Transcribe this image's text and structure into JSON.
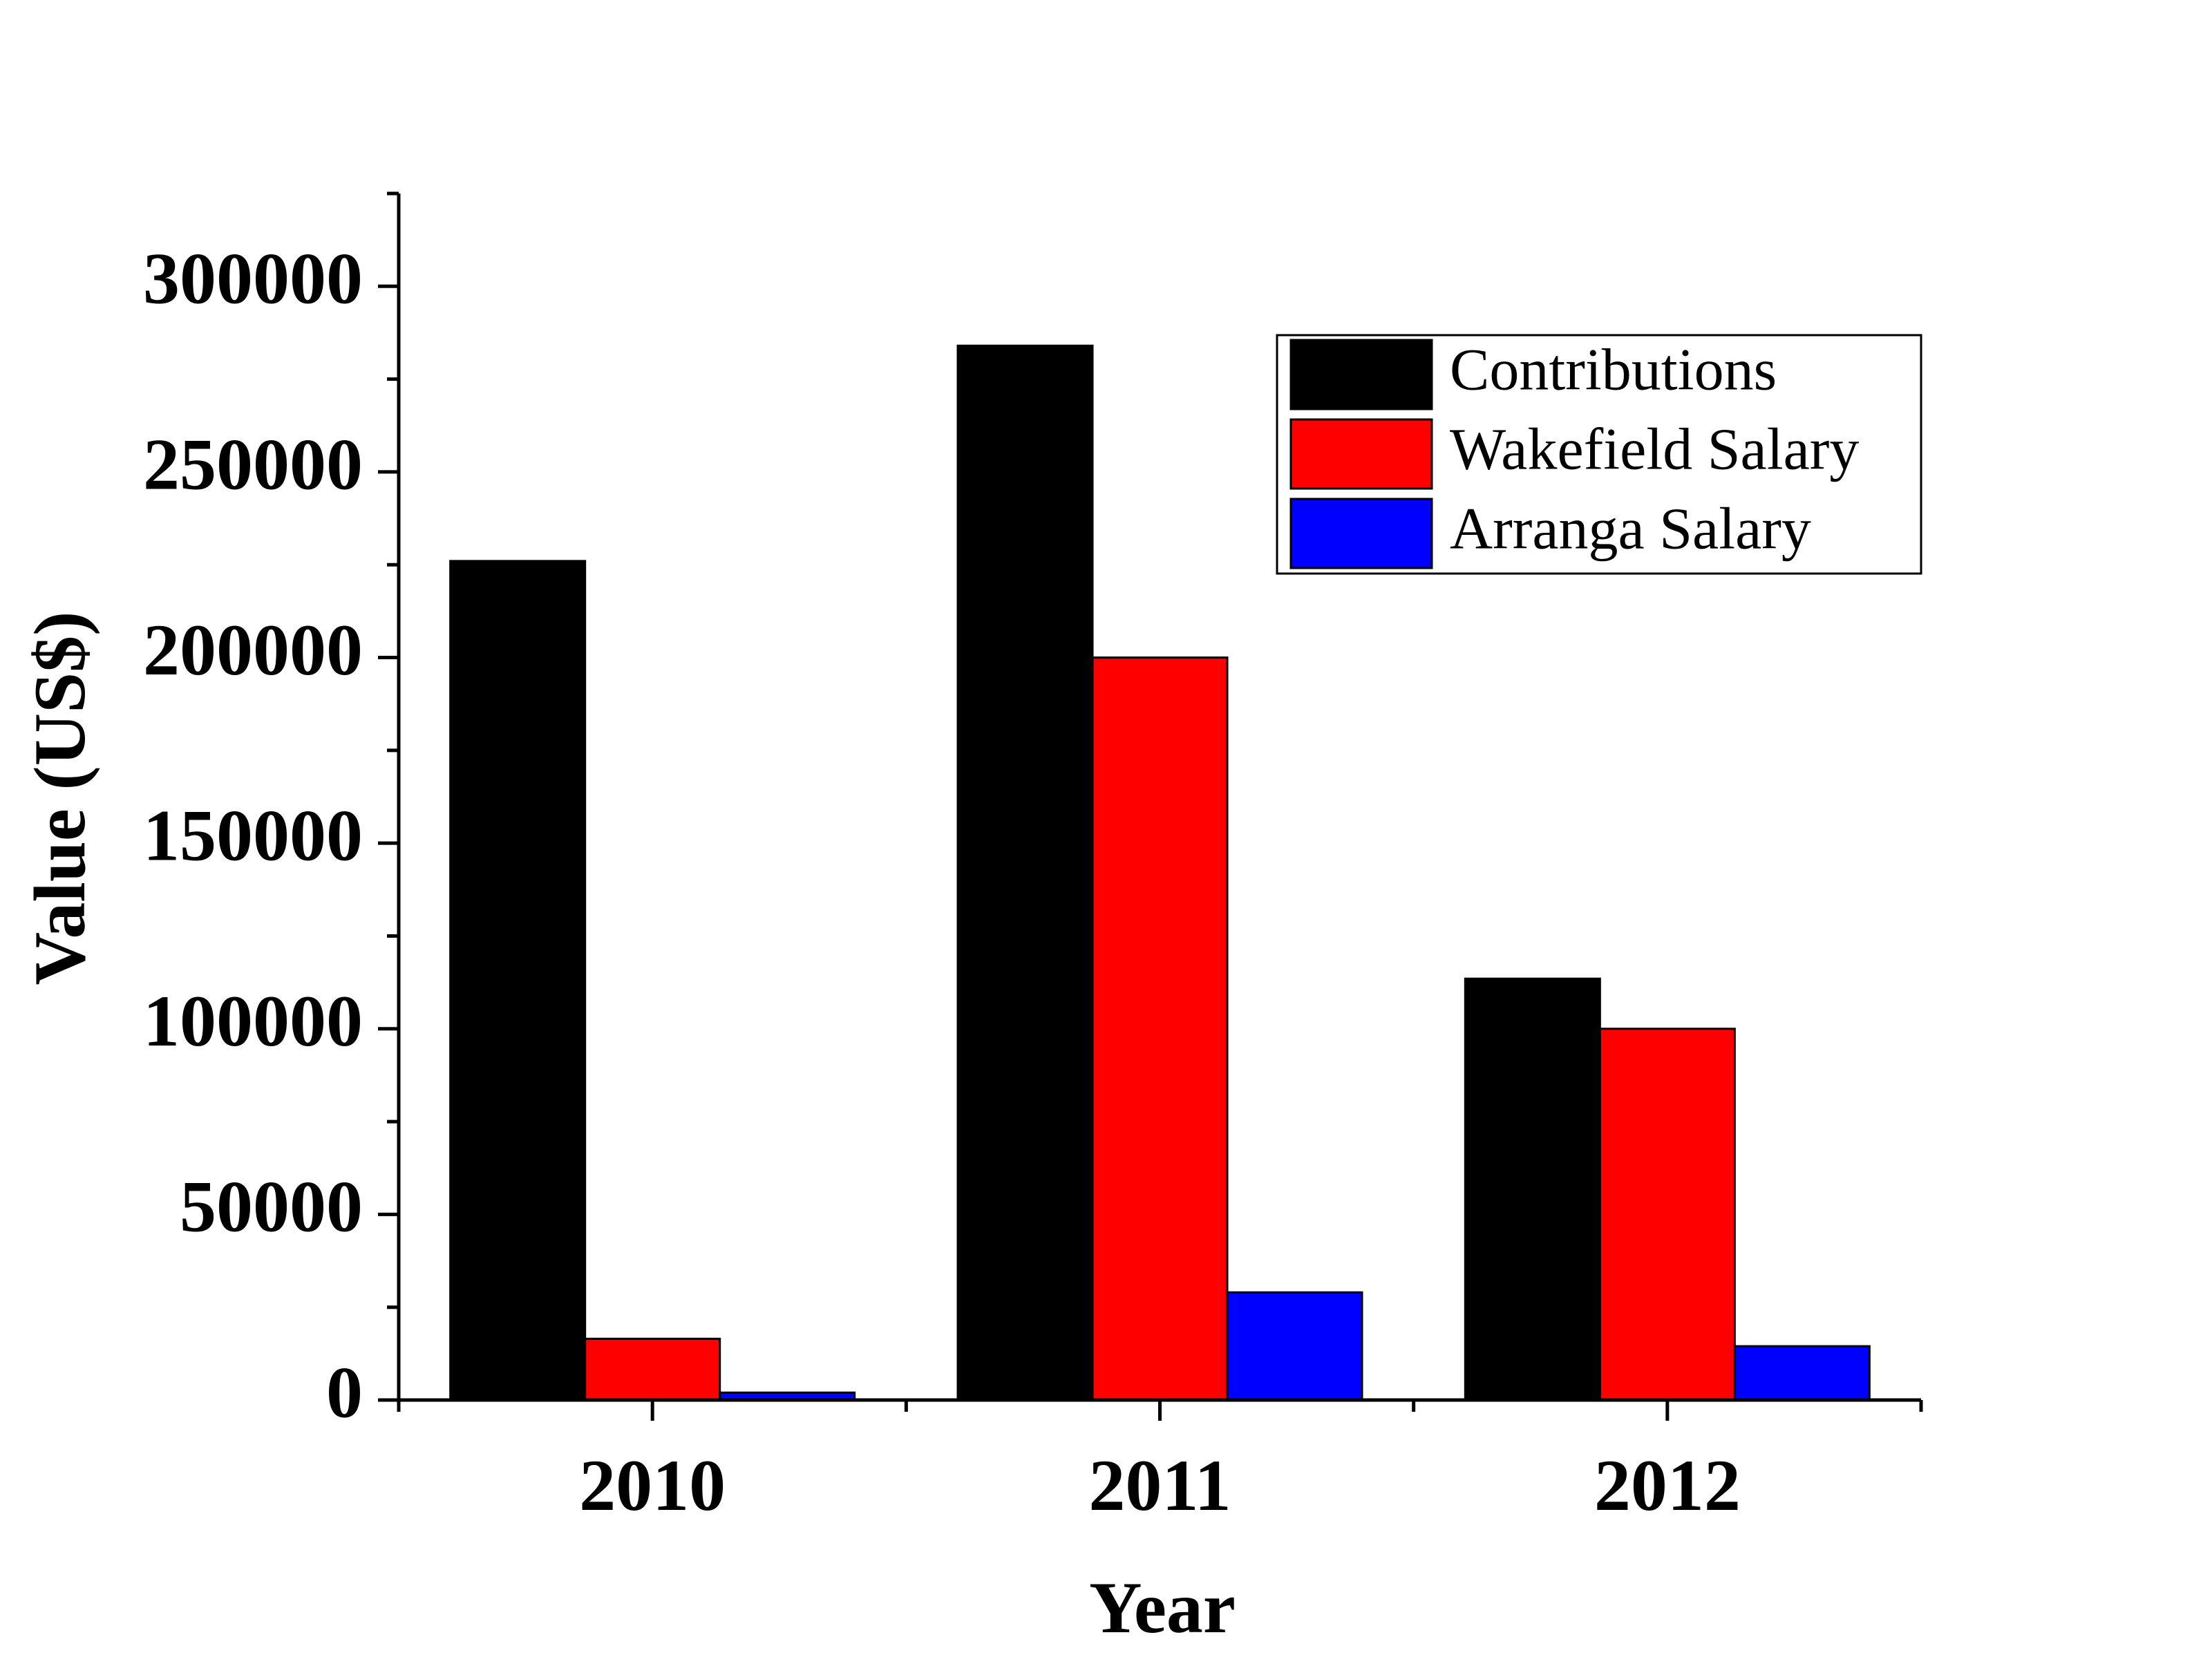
{
  "chart_data": {
    "type": "bar",
    "title": "",
    "xlabel": "Year",
    "ylabel": "Value (US$)",
    "categories": [
      "2010",
      "2011",
      "2012"
    ],
    "series": [
      {
        "name": "Contributions",
        "color": "#000000",
        "values": [
          226000,
          284000,
          113500
        ]
      },
      {
        "name": "Wakefield Salary",
        "color": "#ff0000",
        "values": [
          16500,
          200000,
          100000
        ]
      },
      {
        "name": "Arranga Salary",
        "color": "#0000ff",
        "values": [
          2000,
          29000,
          14500
        ]
      }
    ],
    "ylim": [
      0,
      325000
    ],
    "yticks": [
      0,
      50000,
      100000,
      150000,
      200000,
      250000,
      300000
    ],
    "ytick_labels": [
      "0",
      "50000",
      "100000",
      "150000",
      "200000",
      "250000",
      "300000"
    ],
    "legend_position": "top-right",
    "grid": false
  }
}
